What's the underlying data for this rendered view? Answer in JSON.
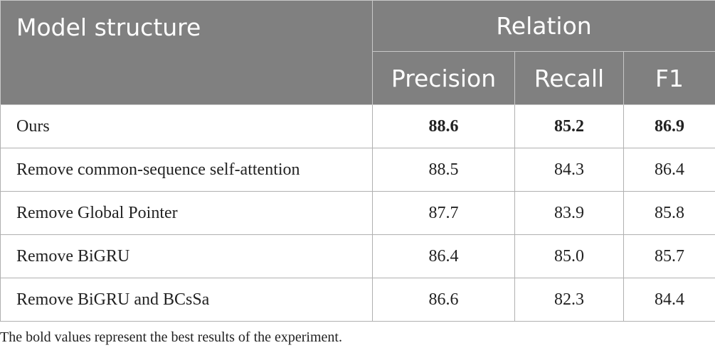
{
  "header": {
    "model_structure": "Model structure",
    "relation": "Relation",
    "precision": "Precision",
    "recall": "Recall",
    "f1": "F1"
  },
  "rows": [
    {
      "name": "Ours",
      "precision": "88.6",
      "recall": "85.2",
      "f1": "86.9",
      "best": true
    },
    {
      "name": "Remove common-sequence self-attention",
      "precision": "88.5",
      "recall": "84.3",
      "f1": "86.4"
    },
    {
      "name": "Remove Global Pointer",
      "precision": "87.7",
      "recall": "83.9",
      "f1": "85.8"
    },
    {
      "name": "Remove BiGRU",
      "precision": "86.4",
      "recall": "85.0",
      "f1": "85.7"
    },
    {
      "name": "Remove BiGRU and BCsSa",
      "precision": "86.6",
      "recall": "82.3",
      "f1": "84.4"
    }
  ],
  "footnote": "The bold values represent the best results of the experiment."
}
